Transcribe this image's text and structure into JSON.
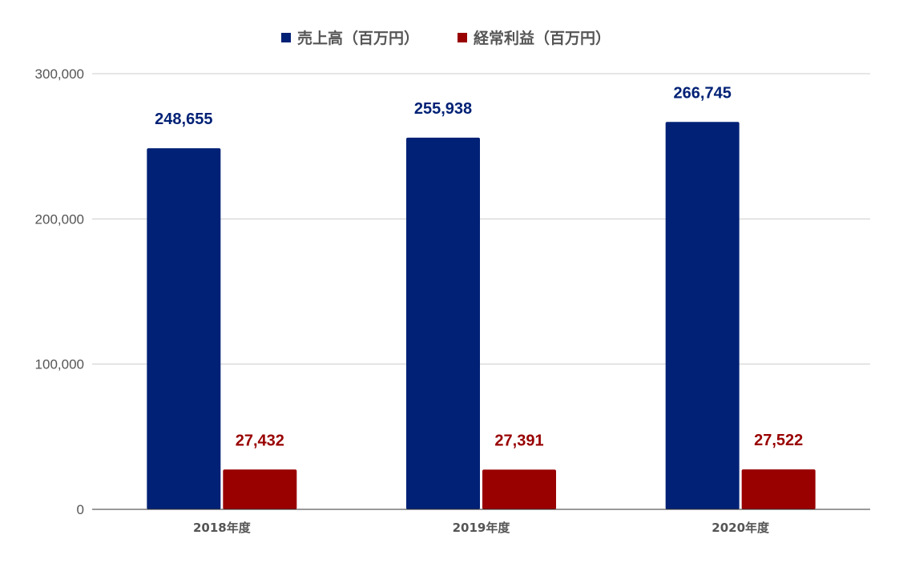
{
  "chart_data": {
    "type": "bar",
    "categories": [
      "2018年度",
      "2019年度",
      "2020年度"
    ],
    "series": [
      {
        "name": "売上高（百万円）",
        "values": [
          248655,
          255938,
          266745
        ],
        "labels": [
          "248,655",
          "255,938",
          "266,745"
        ],
        "color": "#002175"
      },
      {
        "name": "経常利益（百万円）",
        "values": [
          27432,
          27391,
          27522
        ],
        "labels": [
          "27,432",
          "27,391",
          "27,522"
        ],
        "color": "#990000"
      }
    ],
    "y_ticks": [
      {
        "value": 0,
        "label": "0"
      },
      {
        "value": 100000,
        "label": "100,000"
      },
      {
        "value": 200000,
        "label": "200,000"
      },
      {
        "value": 300000,
        "label": "300,000"
      }
    ],
    "ylim": [
      0,
      300000
    ],
    "title": "",
    "xlabel": "",
    "ylabel": "",
    "legend_position": "top",
    "grid": true,
    "colors": {
      "grid": "#cccccc",
      "axis": "#333333",
      "text": "#555555"
    }
  }
}
